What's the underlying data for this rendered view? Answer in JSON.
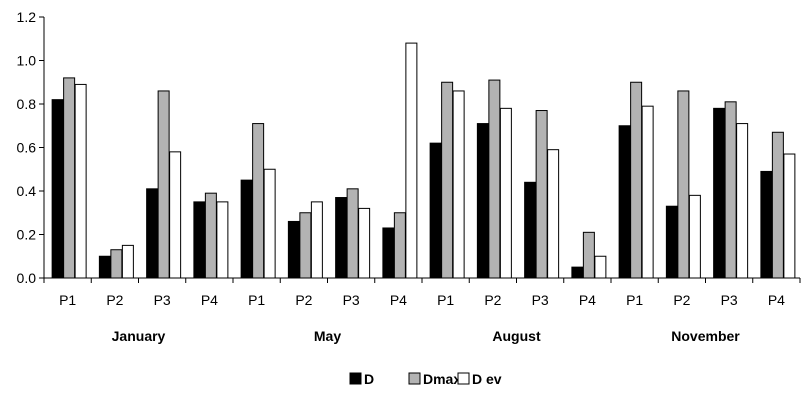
{
  "chart_data": {
    "type": "bar",
    "title": "",
    "xlabel": "",
    "ylabel": "",
    "ylim": [
      0,
      1.2
    ],
    "yticks": [
      "0.0",
      "0.2",
      "0.4",
      "0.6",
      "0.8",
      "1.0",
      "1.2"
    ],
    "grid": false,
    "legend_position": "bottom",
    "groups": [
      "January",
      "May",
      "August",
      "November"
    ],
    "categories": [
      "P1",
      "P2",
      "P3",
      "P4",
      "P1",
      "P2",
      "P3",
      "P4",
      "P1",
      "P2",
      "P3",
      "P4",
      "P1",
      "P2",
      "P3",
      "P4"
    ],
    "series": [
      {
        "name": "D",
        "color": "#000000",
        "values": [
          0.82,
          0.1,
          0.41,
          0.35,
          0.45,
          0.26,
          0.37,
          0.23,
          0.62,
          0.71,
          0.44,
          0.05,
          0.7,
          0.33,
          0.78,
          0.49
        ]
      },
      {
        "name": "Dmax",
        "color": "#b3b3b3",
        "values": [
          0.92,
          0.13,
          0.86,
          0.39,
          0.71,
          0.3,
          0.41,
          0.3,
          0.9,
          0.91,
          0.77,
          0.21,
          0.9,
          0.86,
          0.81,
          0.67
        ]
      },
      {
        "name": "D ev",
        "color": "#ffffff",
        "values": [
          0.89,
          0.15,
          0.58,
          0.35,
          0.5,
          0.35,
          0.32,
          1.08,
          0.86,
          0.78,
          0.59,
          0.1,
          0.79,
          0.38,
          0.71,
          0.57
        ]
      }
    ]
  }
}
